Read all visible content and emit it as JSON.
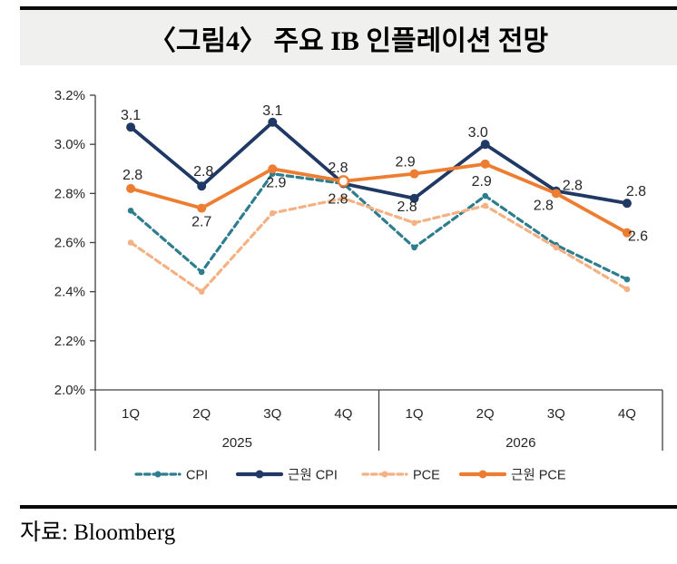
{
  "figure": {
    "title": "〈그림4〉 주요 IB 인플레이션 전망"
  },
  "source": {
    "text": "자료: Bloomberg"
  },
  "chart_data": {
    "type": "line",
    "title": "〈그림4〉 주요 IB 인플레이션 전망",
    "categories": [
      "1Q",
      "2Q",
      "3Q",
      "4Q",
      "1Q",
      "2Q",
      "3Q",
      "4Q"
    ],
    "year_groups": [
      {
        "label": "2025",
        "span": [
          0,
          3
        ]
      },
      {
        "label": "2026",
        "span": [
          4,
          7
        ]
      }
    ],
    "y_ticks": [
      "3.2%",
      "3.0%",
      "2.8%",
      "2.6%",
      "2.4%",
      "2.2%",
      "2.0%"
    ],
    "ylim": [
      2.0,
      3.2
    ],
    "grid": false,
    "legend_position": "bottom",
    "axis_color": "#404040",
    "series": [
      {
        "name": "CPI",
        "color": "#2E7D8E",
        "style": "dashed",
        "values": [
          2.73,
          2.48,
          2.88,
          2.84,
          2.58,
          2.79,
          2.59,
          2.45
        ],
        "labels": null
      },
      {
        "name": "근원 CPI",
        "color": "#1F3864",
        "style": "solid",
        "values": [
          3.07,
          2.83,
          3.09,
          2.84,
          2.78,
          3.0,
          2.81,
          2.76
        ],
        "labels": [
          "3.1",
          "2.8",
          "3.1",
          "2.8",
          "2.8",
          "3.0",
          "2.8",
          "2.8"
        ],
        "label_offsets": [
          [
            0,
            -8
          ],
          [
            2,
            -11
          ],
          [
            0,
            -8
          ],
          [
            -6,
            22
          ],
          [
            -8,
            14
          ],
          [
            -8,
            -8
          ],
          [
            18,
            -1
          ],
          [
            10,
            -8
          ]
        ]
      },
      {
        "name": "PCE",
        "color": "#F4B183",
        "style": "dashed",
        "values": [
          2.6,
          2.4,
          2.72,
          2.78,
          2.68,
          2.75,
          2.58,
          2.41
        ],
        "labels": null
      },
      {
        "name": "근원 PCE",
        "color": "#ED7D31",
        "style": "solid",
        "values": [
          2.82,
          2.74,
          2.9,
          2.85,
          2.88,
          2.92,
          2.8,
          2.64
        ],
        "labels": [
          "2.8",
          "2.7",
          "2.9",
          "2.8",
          "2.9",
          "2.9",
          "2.8",
          "2.6"
        ],
        "label_offsets": [
          [
            2,
            -10
          ],
          [
            0,
            20
          ],
          [
            4,
            20
          ],
          [
            -6,
            -10
          ],
          [
            -10,
            -8
          ],
          [
            -4,
            24
          ],
          [
            -14,
            18
          ],
          [
            12,
            9
          ]
        ],
        "open_marker_indices": [
          3
        ]
      }
    ]
  }
}
